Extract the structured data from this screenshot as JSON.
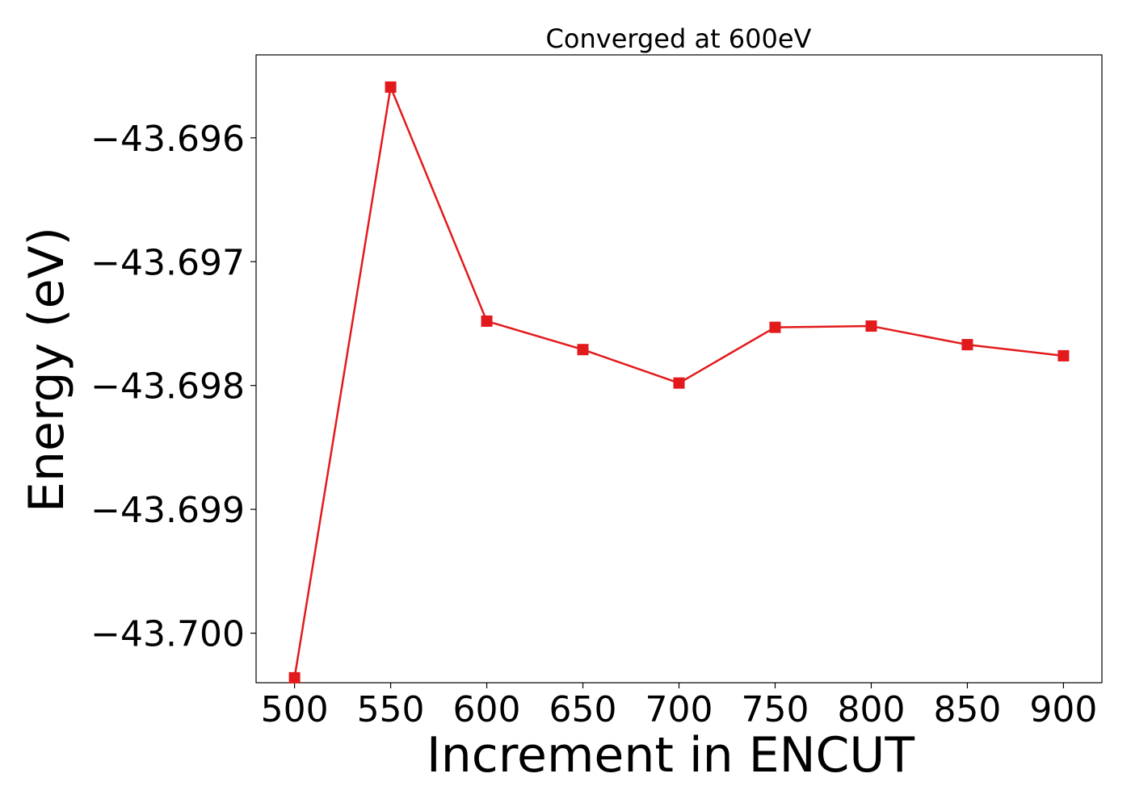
{
  "chart_data": {
    "type": "line",
    "title": "Converged at 600eV",
    "xlabel": "Increment in ENCUT",
    "ylabel": "Energy (eV)",
    "x": [
      500,
      550,
      600,
      650,
      700,
      750,
      800,
      850,
      900
    ],
    "series": [
      {
        "values": [
          -43.70036,
          -43.69559,
          -43.69748,
          -43.69771,
          -43.69798,
          -43.69753,
          -43.69752,
          -43.69767,
          -43.69776
        ],
        "color": "#e31a1c",
        "marker": "square"
      }
    ],
    "xticks": [
      500,
      550,
      600,
      650,
      700,
      750,
      800,
      850,
      900
    ],
    "xtick_labels": [
      "500",
      "550",
      "600",
      "650",
      "700",
      "750",
      "800",
      "850",
      "900"
    ],
    "yticks": [
      -43.696,
      -43.697,
      -43.698,
      -43.699,
      -43.7
    ],
    "ytick_labels": [
      "−43.696",
      "−43.697",
      "−43.698",
      "−43.699",
      "−43.700"
    ],
    "xlim": [
      480,
      920
    ],
    "ylim": [
      -43.7004,
      -43.69533
    ],
    "grid": false,
    "legend": false
  }
}
